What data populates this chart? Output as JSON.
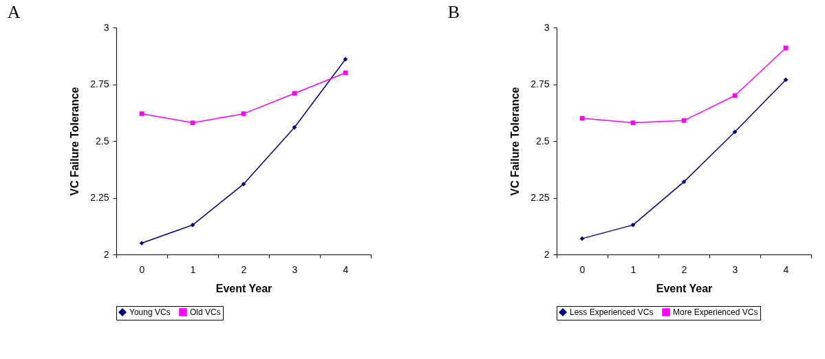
{
  "chart_data": [
    {
      "type": "line",
      "title": "A",
      "xlabel": "Event Year",
      "ylabel": "VC Failure Tolerance",
      "categories": [
        "0",
        "1",
        "2",
        "3",
        "4"
      ],
      "ylim": [
        2,
        3
      ],
      "yticks": [
        2,
        2.25,
        2.5,
        2.75,
        3
      ],
      "grid": false,
      "legend": "bottom",
      "series": [
        {
          "name": "Young VCs",
          "color": "#000080",
          "marker": "diamond",
          "values": [
            2.05,
            2.13,
            2.31,
            2.56,
            2.86
          ]
        },
        {
          "name": "Old VCs",
          "color": "#ff00ff",
          "marker": "square",
          "values": [
            2.62,
            2.58,
            2.62,
            2.71,
            2.8
          ]
        }
      ]
    },
    {
      "type": "line",
      "title": "B",
      "xlabel": "Event Year",
      "ylabel": "VC Failure Tolerance",
      "categories": [
        "0",
        "1",
        "2",
        "3",
        "4"
      ],
      "ylim": [
        2,
        3
      ],
      "yticks": [
        2,
        2.25,
        2.5,
        2.75,
        3
      ],
      "grid": false,
      "legend": "bottom",
      "series": [
        {
          "name": "Less Experienced VCs",
          "color": "#000080",
          "marker": "diamond",
          "values": [
            2.07,
            2.13,
            2.32,
            2.54,
            2.77
          ]
        },
        {
          "name": "More Experienced VCs",
          "color": "#ff00ff",
          "marker": "square",
          "values": [
            2.6,
            2.58,
            2.59,
            2.7,
            2.91
          ]
        }
      ]
    }
  ]
}
